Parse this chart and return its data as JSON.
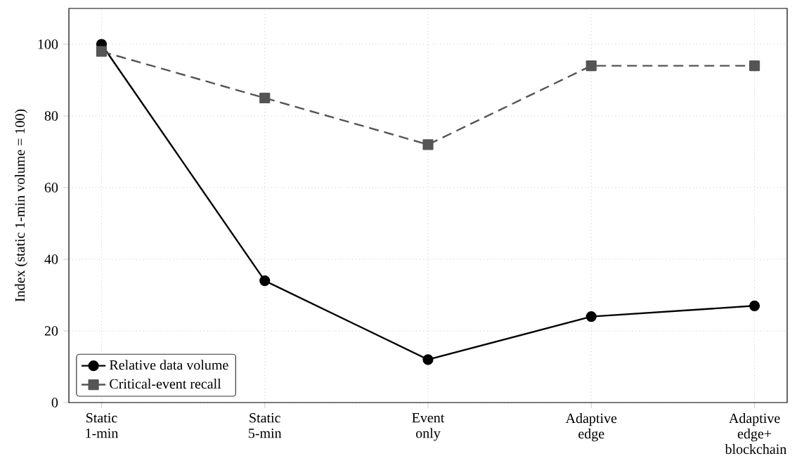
{
  "chart_data": {
    "type": "line",
    "ylabel": "Index (static 1-min volume = 100)",
    "categories": [
      "Static 1-min",
      "Static 5-min",
      "Event only",
      "Adaptive edge",
      "Adaptive edge+ blockchain"
    ],
    "series": [
      {
        "name": "Relative data volume",
        "color": "#000000",
        "values": [
          100,
          34,
          12,
          24,
          27
        ],
        "marker": "circle",
        "line_style": "solid"
      },
      {
        "name": "Critical-event recall",
        "color": "#555555",
        "values": [
          98,
          85,
          72,
          94,
          94
        ],
        "marker": "square",
        "line_style": "dashed"
      }
    ],
    "ylim": [
      0,
      110
    ],
    "yticks": [
      0,
      20,
      40,
      60,
      80,
      100
    ],
    "grid": true,
    "legend": "bottom left"
  }
}
